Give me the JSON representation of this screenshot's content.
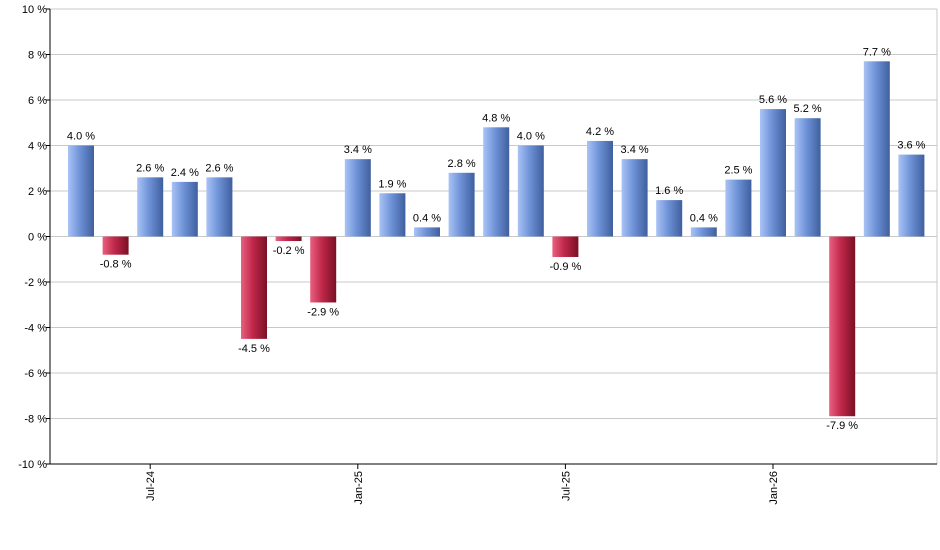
{
  "chart_data": {
    "type": "bar",
    "title": "",
    "xlabel": "",
    "ylabel": "",
    "ylim": [
      -10,
      10
    ],
    "y_ticks": [
      -10,
      -8,
      -6,
      -4,
      -2,
      0,
      2,
      4,
      6,
      8,
      10
    ],
    "y_tick_suffix": " %",
    "grid": true,
    "x_tick_labels": [
      {
        "label": "Jul-24",
        "index": 2
      },
      {
        "label": "Jan-25",
        "index": 8
      },
      {
        "label": "Jul-25",
        "index": 14
      },
      {
        "label": "Jan-26",
        "index": 20
      }
    ],
    "values": [
      4.0,
      -0.8,
      2.6,
      2.4,
      2.6,
      -4.5,
      -0.2,
      -2.9,
      3.4,
      1.9,
      0.4,
      2.8,
      4.8,
      4.0,
      -0.9,
      4.2,
      3.4,
      1.6,
      0.4,
      2.5,
      5.6,
      5.2,
      -7.9,
      7.7,
      3.6
    ],
    "labels": [
      "4.0 %",
      "-0.8 %",
      "2.6 %",
      "2.4 %",
      "2.6 %",
      "-4.5 %",
      "-0.2 %",
      "-2.9 %",
      "3.4 %",
      "1.9 %",
      "0.4 %",
      "2.8 %",
      "4.8 %",
      "4.0 %",
      "-0.9 %",
      "4.2 %",
      "3.4 %",
      "1.6 %",
      "0.4 %",
      "2.5 %",
      "5.6 %",
      "5.2 %",
      "-7.9 %",
      "7.7 %",
      "3.6 %"
    ],
    "colors": {
      "positive": "#6f93d8",
      "positive_light": "#a9c3f5",
      "positive_dark": "#3f5f9e",
      "negative": "#c0284a",
      "negative_light": "#ea6080",
      "negative_dark": "#7a1025",
      "grid": "#c8c8c8",
      "axis": "#000000"
    }
  }
}
